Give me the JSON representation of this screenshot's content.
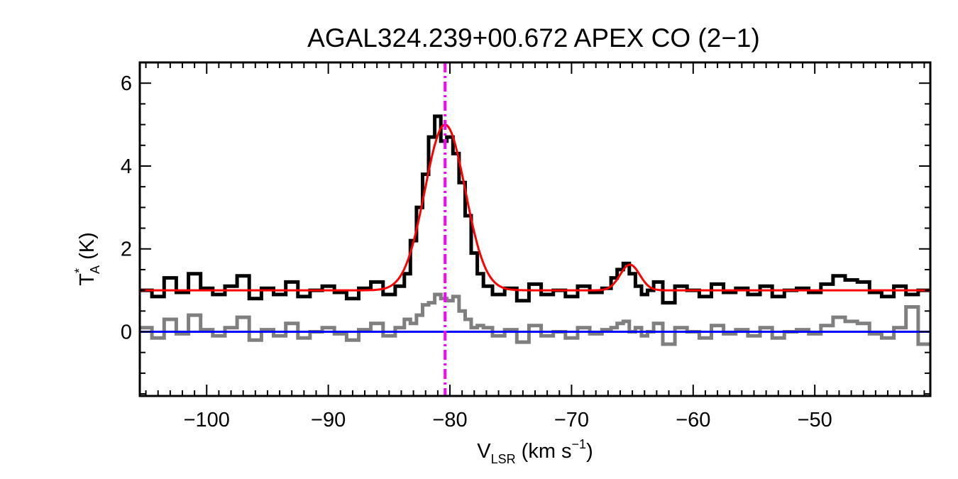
{
  "chart_data": {
    "type": "line",
    "title": "AGAL324.239+00.672  APEX CO (2−1)",
    "xlabel": {
      "main": "V",
      "sub": "LSR",
      "rest": " (km s",
      "sup": "−1",
      "end": ")"
    },
    "ylabel": {
      "main": "T",
      "sup": "*",
      "sub": "A",
      "rest": " (K)"
    },
    "xlim": [
      -105.5,
      -40.5
    ],
    "ylim": [
      -1.55,
      6.5
    ],
    "x_ticks": [
      -100,
      -90,
      -80,
      -70,
      -60,
      -50
    ],
    "x_tick_labels": [
      "−100",
      "−90",
      "−80",
      "−70",
      "−60",
      "−50"
    ],
    "y_ticks": [
      0,
      2,
      4,
      6
    ],
    "y_tick_labels": [
      "0",
      "2",
      "4",
      "6"
    ],
    "grid": false,
    "vline": {
      "x": -80.4,
      "color": "#ff00ff",
      "style": "dash-dot"
    },
    "baseline": {
      "y": 0,
      "color": "#0000ff"
    },
    "series": [
      {
        "style": "histogram",
        "color": "#000000",
        "x": [
          -105.0,
          -104.0,
          -103.0,
          -102.0,
          -101.0,
          -100.0,
          -99.0,
          -98.0,
          -97.0,
          -96.0,
          -95.0,
          -94.0,
          -93.0,
          -92.0,
          -91.0,
          -90.0,
          -89.0,
          -88.0,
          -87.0,
          -86.0,
          -85.0,
          -84.0,
          -83.5,
          -83.0,
          -82.5,
          -82.0,
          -81.5,
          -81.0,
          -80.5,
          -80.0,
          -79.5,
          -79.0,
          -78.5,
          -78.0,
          -77.5,
          -77.0,
          -76.0,
          -75.0,
          -74.0,
          -73.0,
          -72.0,
          -71.0,
          -70.0,
          -69.0,
          -68.0,
          -67.0,
          -66.5,
          -66.0,
          -65.5,
          -65.0,
          -64.5,
          -64.0,
          -63.5,
          -63.0,
          -62.0,
          -61.0,
          -60.0,
          -59.0,
          -58.0,
          -57.0,
          -56.0,
          -55.0,
          -54.0,
          -53.0,
          -52.0,
          -51.0,
          -50.0,
          -49.0,
          -48.0,
          -47.0,
          -46.0,
          -45.0,
          -44.0,
          -43.0,
          -42.0,
          -41.0
        ],
        "y": [
          1.0,
          0.85,
          1.3,
          0.95,
          1.4,
          1.05,
          0.9,
          1.1,
          1.35,
          0.8,
          1.05,
          0.9,
          1.2,
          0.85,
          1.0,
          1.1,
          0.95,
          0.8,
          1.05,
          1.2,
          0.9,
          1.1,
          1.4,
          2.2,
          3.0,
          3.8,
          4.7,
          5.2,
          4.6,
          4.7,
          4.3,
          3.6,
          2.8,
          1.9,
          1.4,
          1.1,
          0.9,
          1.05,
          0.75,
          1.15,
          0.9,
          1.0,
          0.85,
          1.1,
          0.95,
          1.05,
          1.3,
          1.5,
          1.65,
          1.4,
          1.1,
          0.9,
          1.0,
          1.2,
          0.7,
          1.1,
          1.0,
          0.85,
          1.15,
          0.95,
          1.05,
          0.9,
          1.1,
          0.85,
          1.0,
          1.05,
          0.95,
          1.15,
          1.35,
          1.25,
          1.2,
          0.95,
          0.85,
          1.1,
          0.9,
          1.0
        ]
      },
      {
        "style": "histogram",
        "color": "#7f7f7f",
        "x": [
          -105.0,
          -104.0,
          -103.0,
          -102.0,
          -101.0,
          -100.0,
          -99.0,
          -98.0,
          -97.0,
          -96.0,
          -95.0,
          -94.0,
          -93.0,
          -92.0,
          -91.0,
          -90.0,
          -89.0,
          -88.0,
          -87.0,
          -86.0,
          -85.0,
          -84.0,
          -83.5,
          -83.0,
          -82.5,
          -82.0,
          -81.5,
          -81.0,
          -80.5,
          -80.0,
          -79.5,
          -79.0,
          -78.5,
          -78.0,
          -77.5,
          -77.0,
          -76.0,
          -75.0,
          -74.0,
          -73.0,
          -72.0,
          -71.0,
          -70.0,
          -69.0,
          -68.0,
          -67.0,
          -66.5,
          -66.0,
          -65.5,
          -65.0,
          -64.5,
          -64.0,
          -63.5,
          -63.0,
          -62.0,
          -61.0,
          -60.0,
          -59.0,
          -58.0,
          -57.0,
          -56.0,
          -55.0,
          -54.0,
          -53.0,
          -52.0,
          -51.0,
          -50.0,
          -49.0,
          -48.0,
          -47.0,
          -46.0,
          -45.0,
          -44.0,
          -43.0,
          -42.0,
          -41.0
        ],
        "y": [
          0.1,
          -0.15,
          0.3,
          -0.05,
          0.4,
          0.05,
          -0.1,
          0.1,
          0.35,
          -0.2,
          0.05,
          -0.1,
          0.2,
          -0.15,
          0.0,
          0.1,
          -0.05,
          -0.2,
          0.05,
          0.2,
          -0.1,
          0.1,
          0.3,
          0.2,
          0.4,
          0.65,
          0.7,
          0.9,
          0.8,
          0.75,
          0.85,
          0.5,
          0.3,
          0.1,
          0.15,
          0.1,
          -0.1,
          0.05,
          -0.25,
          0.15,
          -0.1,
          0.0,
          -0.15,
          0.1,
          -0.05,
          0.05,
          0.1,
          0.2,
          0.25,
          0.0,
          0.1,
          -0.1,
          0.0,
          0.2,
          -0.3,
          0.1,
          0.0,
          -0.15,
          0.15,
          -0.05,
          0.05,
          -0.1,
          0.1,
          -0.15,
          0.0,
          0.05,
          -0.05,
          0.15,
          0.35,
          0.25,
          0.2,
          -0.05,
          -0.15,
          0.1,
          0.6,
          -0.3
        ]
      },
      {
        "style": "fit",
        "color": "#ff0000",
        "model": "gaussians",
        "baseline": 1.0,
        "components": [
          {
            "amplitude": 4.0,
            "center": -80.4,
            "fwhm": 3.9
          },
          {
            "amplitude": 0.62,
            "center": -65.2,
            "fwhm": 1.9
          }
        ]
      }
    ]
  }
}
